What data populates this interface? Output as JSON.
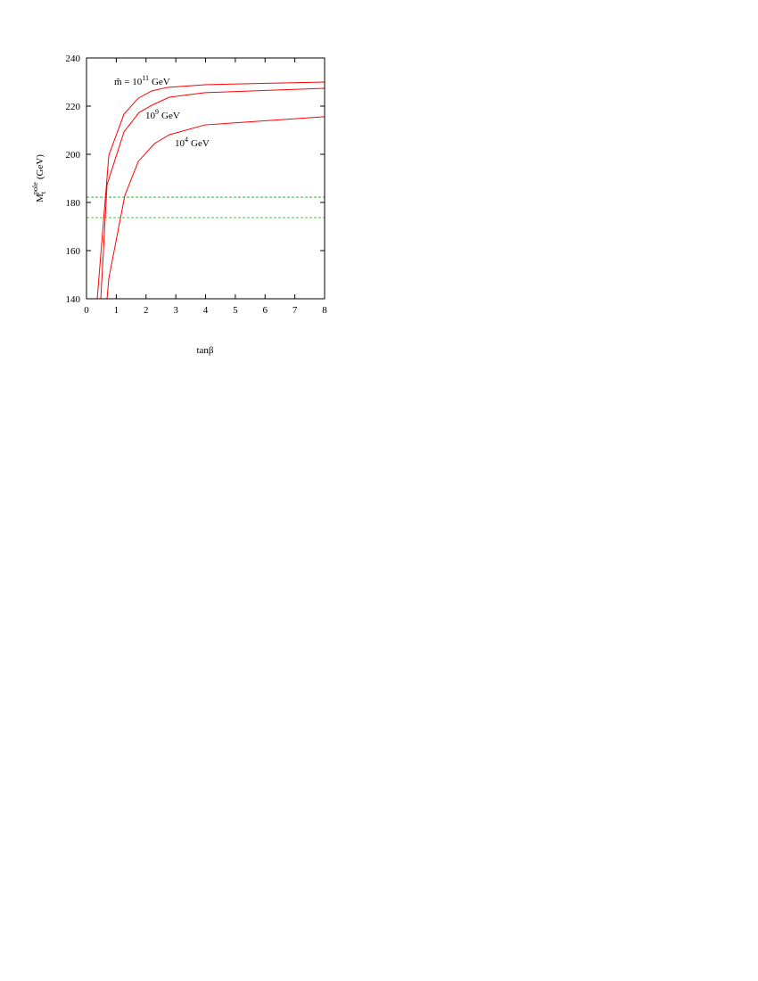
{
  "chart_data": {
    "type": "line",
    "x_label": "tanβ",
    "y_label": {
      "main": "M",
      "sub": "t",
      "sup": "pole",
      "unit": "(GeV)"
    },
    "series": [
      {
        "label": {
          "base": "m̃ = 10",
          "sup": "11",
          "unit": "GeV"
        },
        "color": "#ff0000",
        "x": [
          0.36,
          0.75,
          1.26,
          1.74,
          2.19,
          2.72,
          3.98,
          8
        ],
        "values": [
          140,
          199.6,
          216.7,
          223.3,
          226.3,
          227.8,
          228.9,
          230
        ]
      },
      {
        "label": {
          "base": "10",
          "sup": "9",
          "unit": "GeV"
        },
        "color": "#ff0000",
        "x": [
          0.48,
          0.69,
          1.26,
          1.77,
          2.25,
          2.78,
          3.98,
          8
        ],
        "values": [
          140,
          187.4,
          209.3,
          217.4,
          220.7,
          223.7,
          225.6,
          227.4
        ]
      },
      {
        "label": {
          "base": "10",
          "sup": "4",
          "unit": "GeV"
        },
        "color": "#ff0000",
        "x": [
          0.69,
          0.75,
          1.29,
          1.74,
          2.28,
          2.78,
          3.98,
          8
        ],
        "values": [
          140,
          148.5,
          183,
          197,
          204.4,
          208.1,
          212.2,
          215.6
        ]
      }
    ],
    "hlines": [
      182.2,
      173.7
    ],
    "hline_color": "#00c000",
    "xlim": [
      0,
      8
    ],
    "xticks": [
      0,
      1,
      2,
      3,
      4,
      5,
      6,
      7,
      8
    ],
    "ylim": [
      140,
      240
    ],
    "yticks": [
      140,
      160,
      180,
      200,
      220,
      240
    ]
  }
}
